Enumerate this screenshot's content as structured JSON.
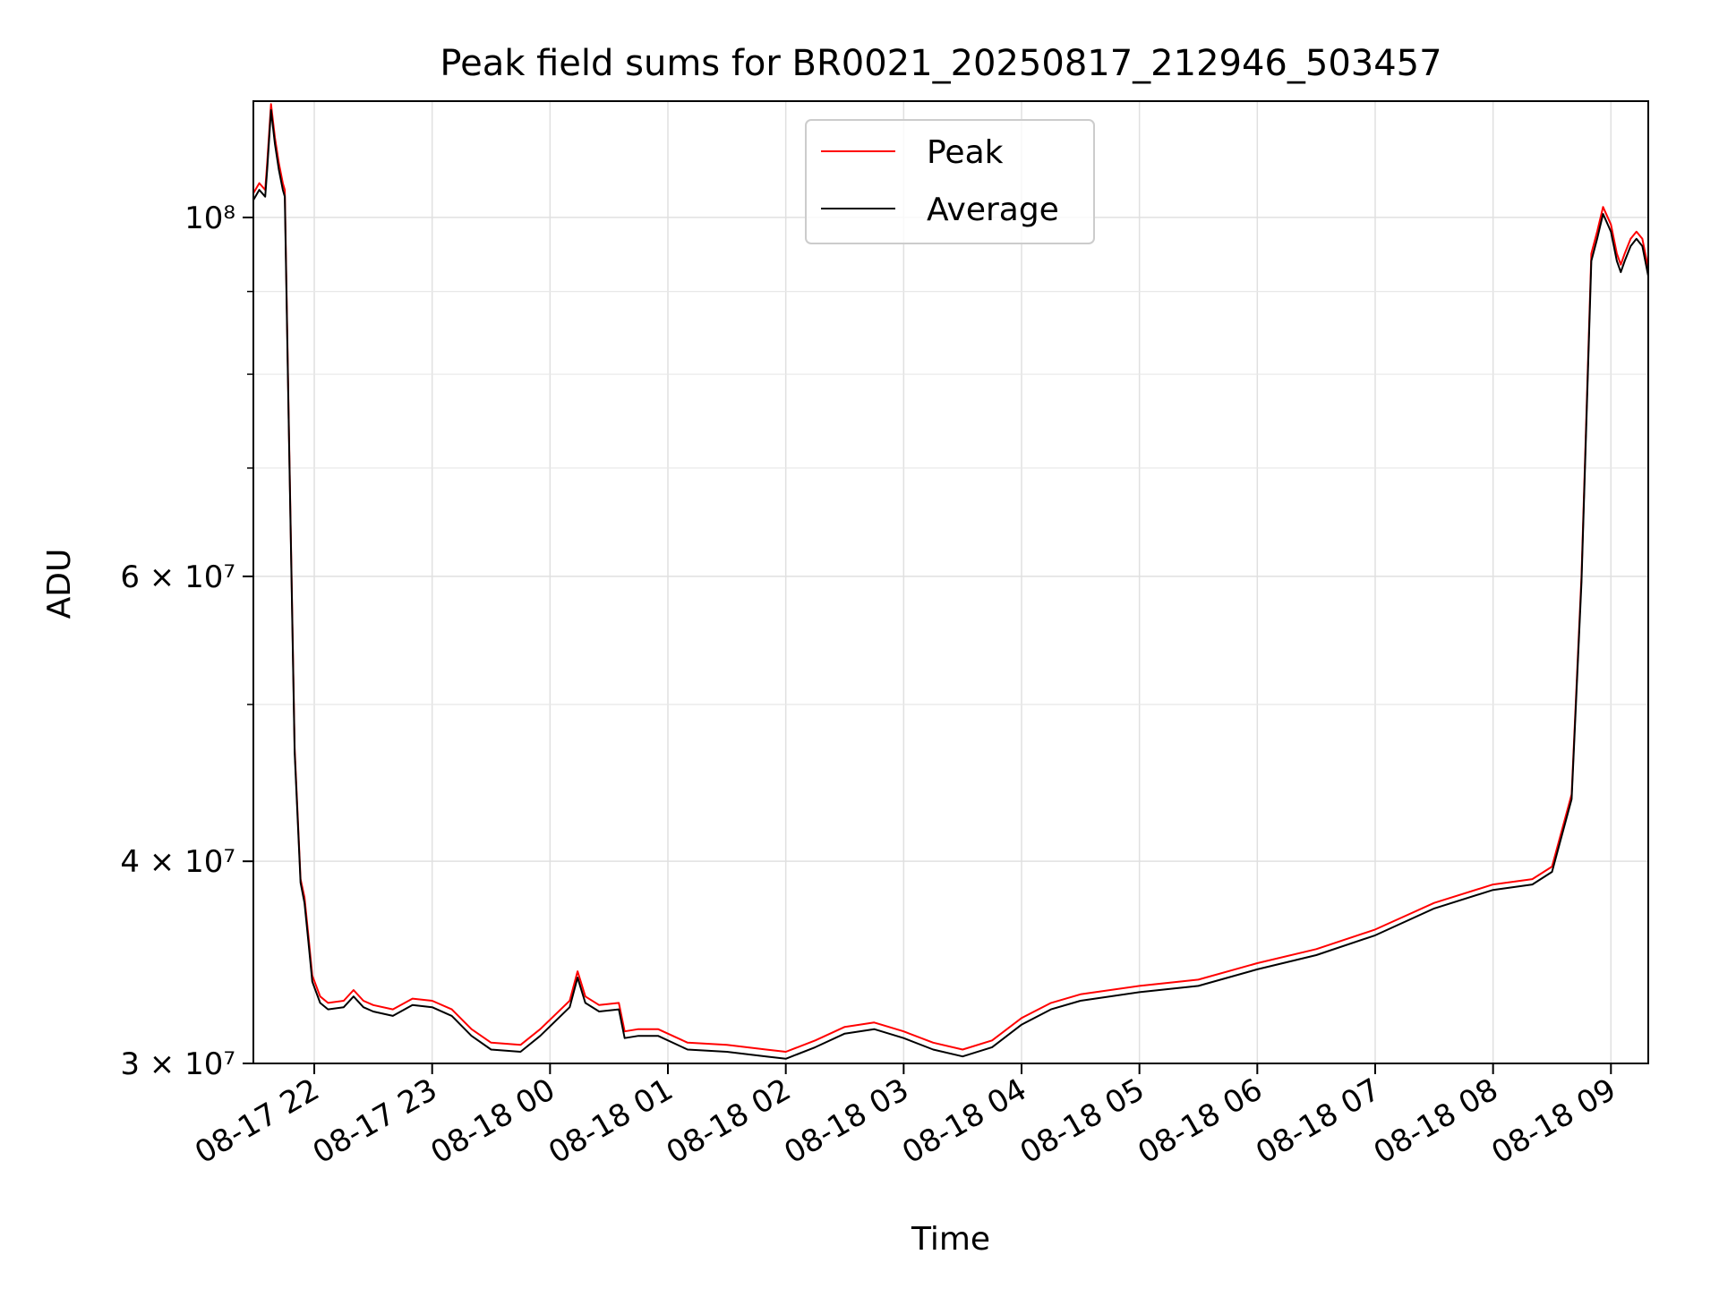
{
  "chart_data": {
    "type": "line",
    "title": "Peak field sums for BR0021_20250817_212946_503457",
    "xlabel": "Time",
    "ylabel": "ADU",
    "yscale": "log",
    "xlim": [
      "2025-08-17 21:29",
      "2025-08-18 09:19"
    ],
    "ylim": [
      30000000,
      118000000
    ],
    "grid": true,
    "legend_position": "top-center",
    "x_ticks": [
      {
        "t": "2025-08-17 22:00",
        "label": "08-17 22"
      },
      {
        "t": "2025-08-17 23:00",
        "label": "08-17 23"
      },
      {
        "t": "2025-08-18 00:00",
        "label": "08-18 00"
      },
      {
        "t": "2025-08-18 01:00",
        "label": "08-18 01"
      },
      {
        "t": "2025-08-18 02:00",
        "label": "08-18 02"
      },
      {
        "t": "2025-08-18 03:00",
        "label": "08-18 03"
      },
      {
        "t": "2025-08-18 04:00",
        "label": "08-18 04"
      },
      {
        "t": "2025-08-18 05:00",
        "label": "08-18 05"
      },
      {
        "t": "2025-08-18 06:00",
        "label": "08-18 06"
      },
      {
        "t": "2025-08-18 07:00",
        "label": "08-18 07"
      },
      {
        "t": "2025-08-18 08:00",
        "label": "08-18 08"
      },
      {
        "t": "2025-08-18 09:00",
        "label": "08-18 09"
      }
    ],
    "y_ticks_major": [
      {
        "value": 30000000,
        "label": "3 × 10⁷"
      },
      {
        "value": 40000000,
        "label": "4 × 10⁷"
      },
      {
        "value": 60000000,
        "label": "6 × 10⁷"
      },
      {
        "value": 100000000,
        "label": "10⁸"
      }
    ],
    "y_ticks_minor": [
      50000000,
      70000000,
      80000000,
      90000000
    ],
    "x": [
      "2025-08-17 21:29",
      "2025-08-17 21:32",
      "2025-08-17 21:35",
      "2025-08-17 21:36",
      "2025-08-17 21:38",
      "2025-08-17 21:40",
      "2025-08-17 21:42",
      "2025-08-17 21:44",
      "2025-08-17 21:45",
      "2025-08-17 21:47",
      "2025-08-17 21:50",
      "2025-08-17 21:53",
      "2025-08-17 21:55",
      "2025-08-17 21:57",
      "2025-08-17 21:59",
      "2025-08-17 22:03",
      "2025-08-17 22:07",
      "2025-08-17 22:15",
      "2025-08-17 22:20",
      "2025-08-17 22:25",
      "2025-08-17 22:30",
      "2025-08-17 22:40",
      "2025-08-17 22:50",
      "2025-08-17 23:00",
      "2025-08-17 23:10",
      "2025-08-17 23:20",
      "2025-08-17 23:30",
      "2025-08-17 23:45",
      "2025-08-17 23:55",
      "2025-08-18 00:10",
      "2025-08-18 00:14",
      "2025-08-18 00:18",
      "2025-08-18 00:25",
      "2025-08-18 00:35",
      "2025-08-18 00:38",
      "2025-08-18 00:45",
      "2025-08-18 00:55",
      "2025-08-18 01:10",
      "2025-08-18 01:30",
      "2025-08-18 01:50",
      "2025-08-18 02:00",
      "2025-08-18 02:15",
      "2025-08-18 02:30",
      "2025-08-18 02:45",
      "2025-08-18 03:00",
      "2025-08-18 03:15",
      "2025-08-18 03:30",
      "2025-08-18 03:45",
      "2025-08-18 04:00",
      "2025-08-18 04:15",
      "2025-08-18 04:30",
      "2025-08-18 05:00",
      "2025-08-18 05:30",
      "2025-08-18 06:00",
      "2025-08-18 06:30",
      "2025-08-18 07:00",
      "2025-08-18 07:30",
      "2025-08-18 08:00",
      "2025-08-18 08:20",
      "2025-08-18 08:30",
      "2025-08-18 08:40",
      "2025-08-18 08:45",
      "2025-08-18 08:50",
      "2025-08-18 08:53",
      "2025-08-18 08:56",
      "2025-08-18 09:00",
      "2025-08-18 09:03",
      "2025-08-18 09:05",
      "2025-08-18 09:07",
      "2025-08-18 09:10",
      "2025-08-18 09:13",
      "2025-08-18 09:16",
      "2025-08-18 09:19"
    ],
    "series": [
      {
        "name": "Peak",
        "color": "#ff0000",
        "values": [
          103500000,
          105000000,
          104000000,
          108000000,
          117500000,
          112000000,
          108000000,
          105000000,
          104000000,
          75000000,
          47000000,
          39000000,
          38000000,
          36000000,
          34000000,
          33000000,
          32700000,
          32800000,
          33300000,
          32800000,
          32600000,
          32400000,
          32900000,
          32800000,
          32400000,
          31500000,
          30900000,
          30800000,
          31500000,
          32800000,
          34200000,
          33000000,
          32600000,
          32700000,
          31400000,
          31500000,
          31500000,
          30900000,
          30800000,
          30600000,
          30500000,
          31000000,
          31600000,
          31800000,
          31400000,
          30900000,
          30600000,
          31000000,
          32000000,
          32700000,
          33100000,
          33500000,
          33800000,
          34600000,
          35300000,
          36300000,
          37700000,
          38700000,
          39000000,
          39700000,
          44000000,
          60000000,
          95000000,
          98000000,
          101500000,
          99000000,
          95000000,
          93500000,
          95000000,
          97000000,
          98000000,
          97000000,
          93000000
        ]
      },
      {
        "name": "Average",
        "color": "#000000",
        "values": [
          102500000,
          104000000,
          103000000,
          107000000,
          116500000,
          111000000,
          107000000,
          104000000,
          103000000,
          74500000,
          46700000,
          38800000,
          37700000,
          35700000,
          33700000,
          32700000,
          32400000,
          32500000,
          33000000,
          32500000,
          32300000,
          32100000,
          32600000,
          32500000,
          32100000,
          31200000,
          30600000,
          30500000,
          31200000,
          32500000,
          33900000,
          32700000,
          32300000,
          32400000,
          31100000,
          31200000,
          31200000,
          30600000,
          30500000,
          30300000,
          30200000,
          30700000,
          31300000,
          31500000,
          31100000,
          30600000,
          30300000,
          30700000,
          31700000,
          32400000,
          32800000,
          33200000,
          33500000,
          34300000,
          35000000,
          36000000,
          37400000,
          38400000,
          38700000,
          39400000,
          43700000,
          59500000,
          94000000,
          97000000,
          100500000,
          98000000,
          94000000,
          92500000,
          94000000,
          96000000,
          97000000,
          96000000,
          92000000
        ]
      }
    ]
  }
}
